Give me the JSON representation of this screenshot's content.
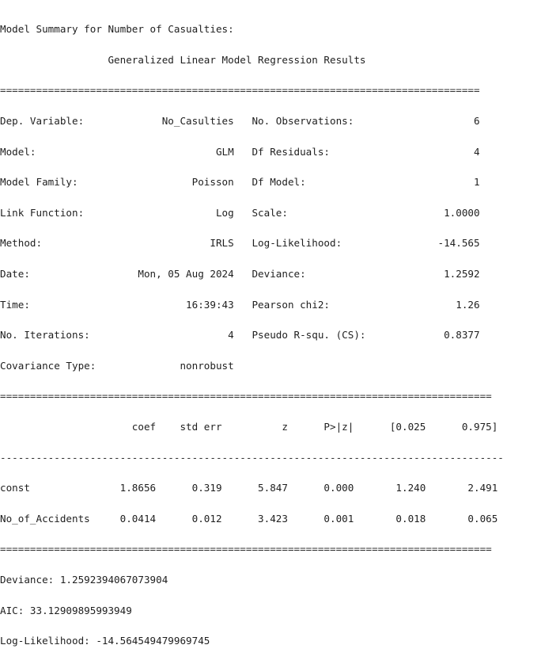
{
  "header": {
    "intro": "Model Summary for Number of Casualties:",
    "title": "                  Generalized Linear Model Regression Results"
  },
  "rules": {
    "double_long": "==================================================================================",
    "double_short": "================================================================================"
  },
  "top_table": [
    "Dep. Variable:             No_Casulties   No. Observations:                    6",
    "Model:                              GLM   Df Residuals:                        4",
    "Model Family:                   Poisson   Df Model:                            1",
    "Link Function:                      Log   Scale:                          1.0000",
    "Method:                            IRLS   Log-Likelihood:                -14.565",
    "Date:                  Mon, 05 Aug 2024   Deviance:                       1.2592",
    "Time:                          16:39:43   Pearson chi2:                     1.26",
    "No. Iterations:                       4   Pseudo R-squ. (CS):             0.8377",
    "Covariance Type:              nonrobust"
  ],
  "coef_table": {
    "header": "                      coef    std err          z      P>|z|      [0.025      0.975]",
    "divider": "------------------------------------------------------------------------------------",
    "rows": [
      "const               1.8656      0.319      5.847      0.000       1.240       2.491",
      "No_of_Accidents     0.0414      0.012      3.423      0.001       0.018       0.065"
    ]
  },
  "footer": [
    "Deviance: 1.2592394067073904",
    "AIC: 33.12909895993949",
    "Log-Likelihood: -14.564549479969745"
  ]
}
